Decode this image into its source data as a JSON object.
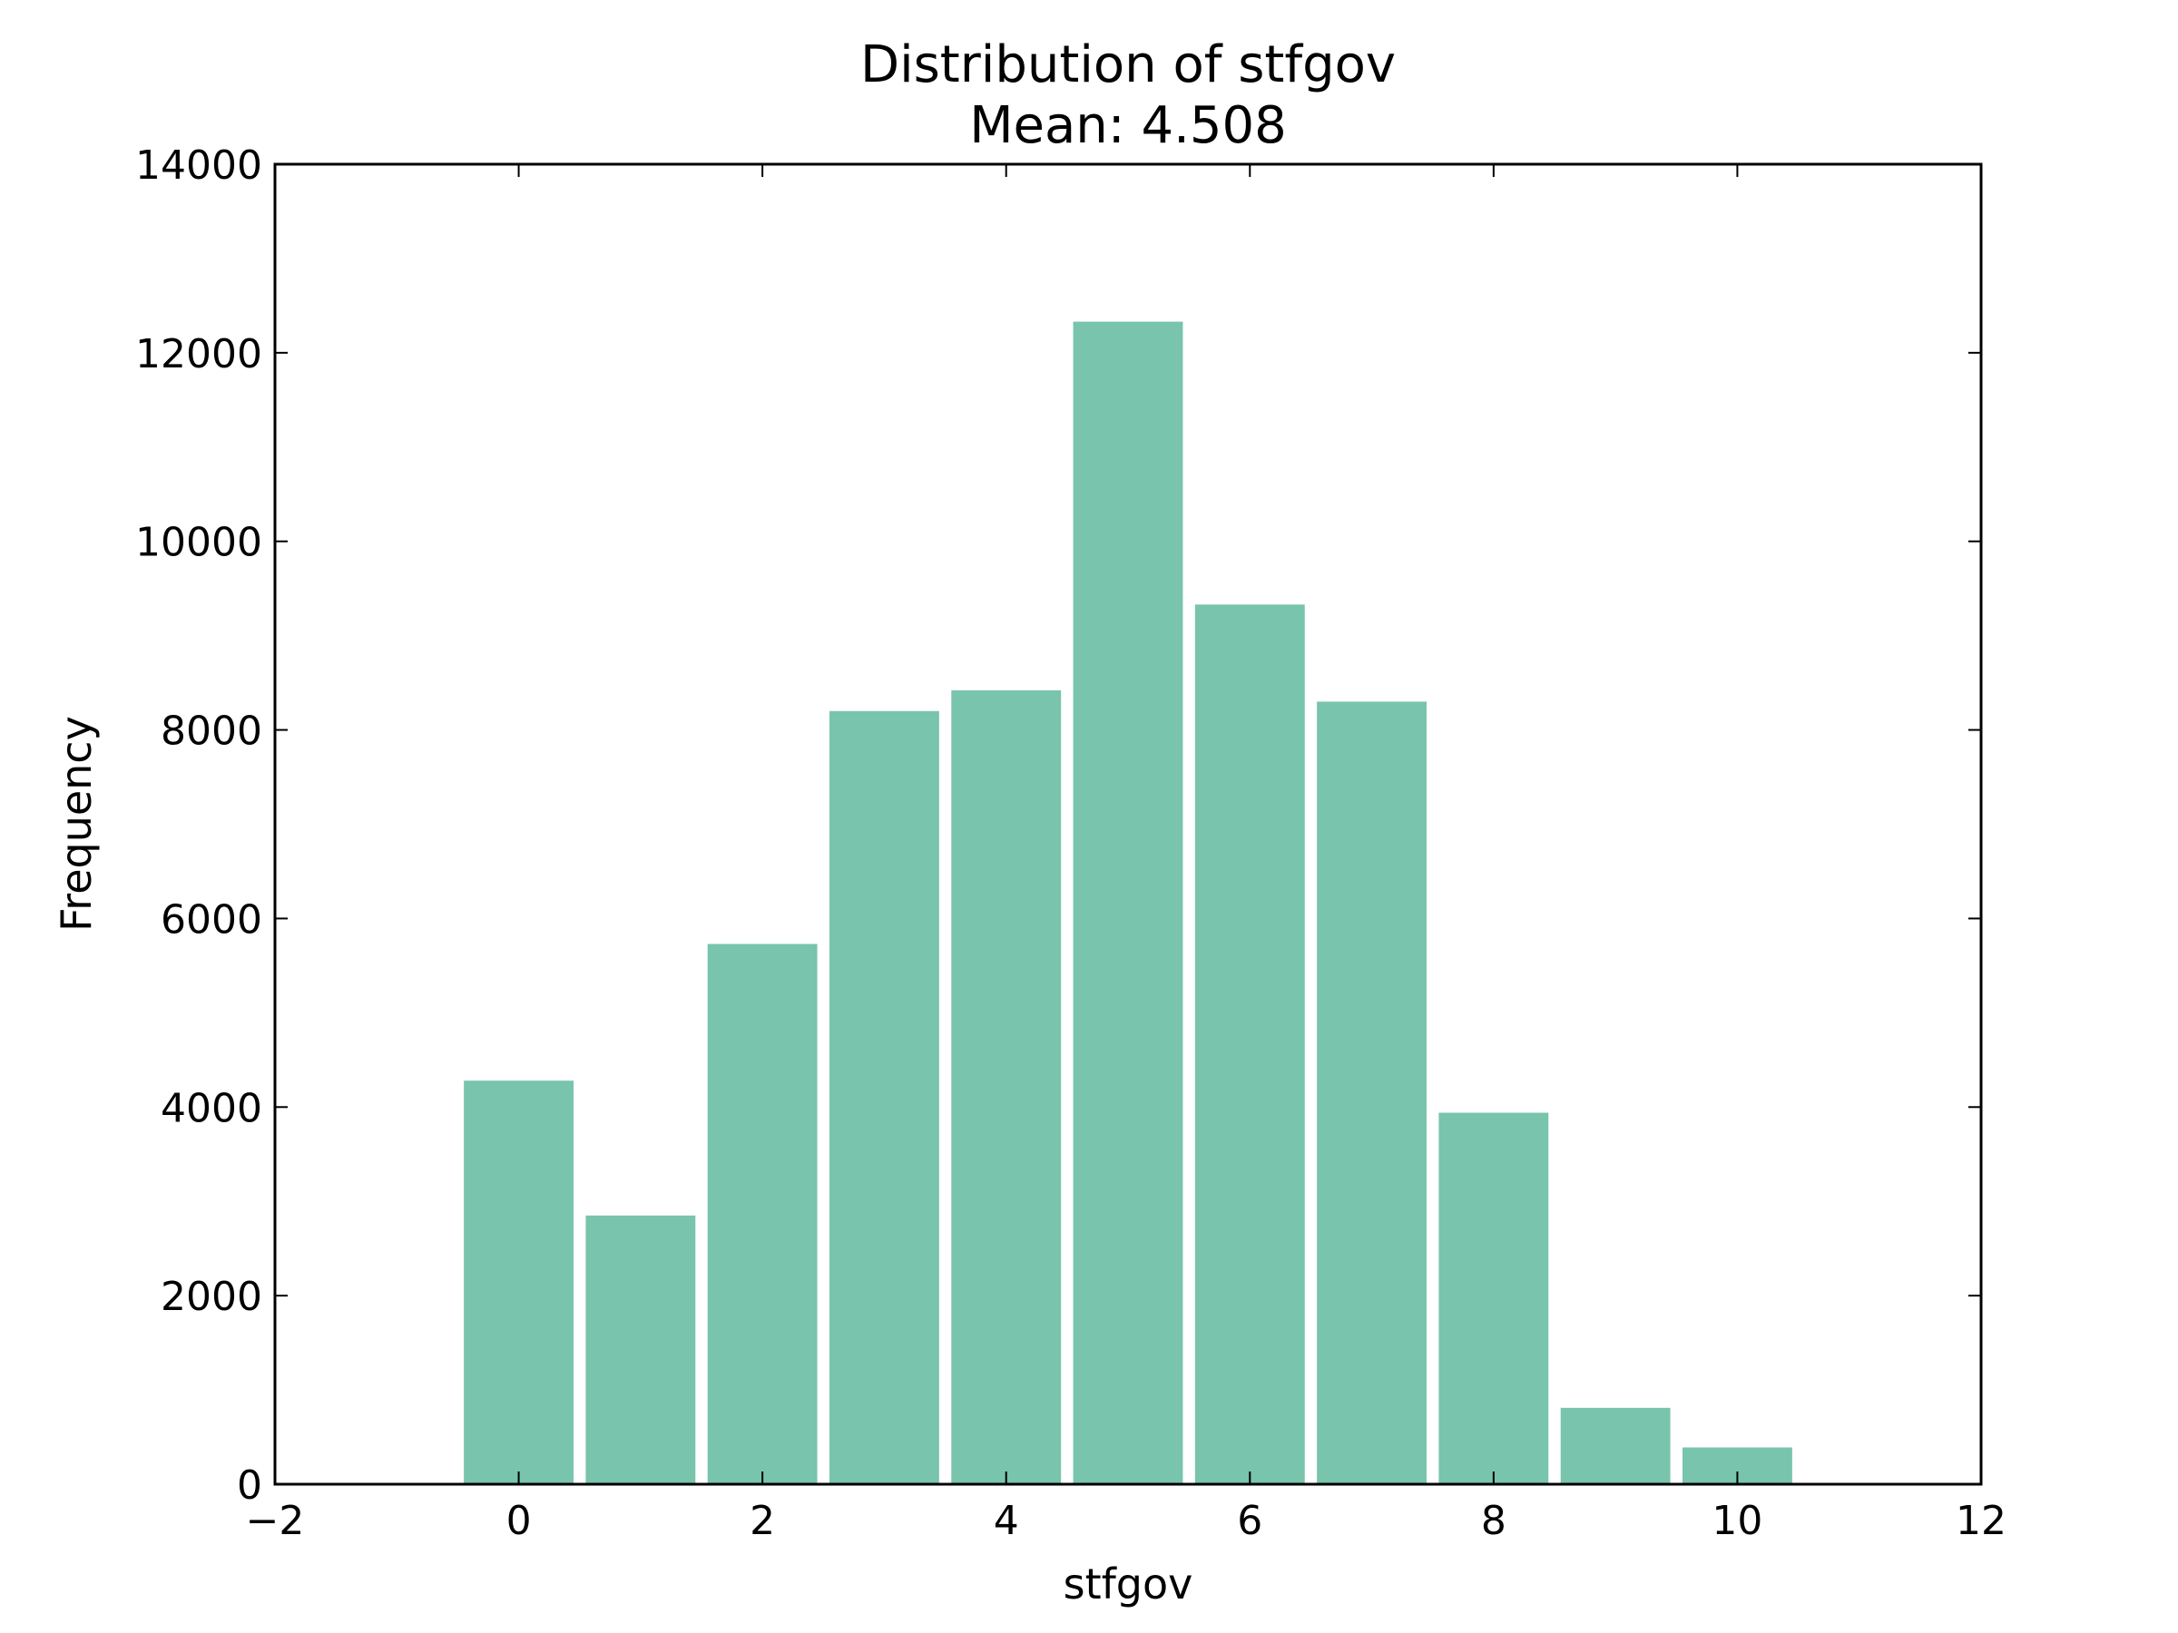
{
  "chart_data": {
    "type": "bar",
    "title": "Distribution of stfgov",
    "subtitle": "Mean: 4.508",
    "xlabel": "stfgov",
    "ylabel": "Frequency",
    "xlim": [
      -2,
      12
    ],
    "ylim": [
      0,
      14000
    ],
    "xticks": [
      -2,
      0,
      2,
      4,
      6,
      8,
      10,
      12
    ],
    "xtick_labels": [
      "−2",
      "0",
      "2",
      "4",
      "6",
      "8",
      "10",
      "12"
    ],
    "yticks": [
      0,
      2000,
      4000,
      6000,
      8000,
      10000,
      12000,
      14000
    ],
    "ytick_labels": [
      "0",
      "2000",
      "4000",
      "6000",
      "8000",
      "10000",
      "12000",
      "14000"
    ],
    "bar_width": 0.9,
    "categories": [
      0,
      1,
      2,
      3,
      4,
      5,
      6,
      7,
      8,
      9,
      10
    ],
    "values": [
      4280,
      2850,
      5730,
      8200,
      8420,
      12330,
      9330,
      8300,
      3940,
      810,
      390
    ],
    "bar_color": "#78c4ad",
    "grid": false,
    "legend": "none"
  }
}
